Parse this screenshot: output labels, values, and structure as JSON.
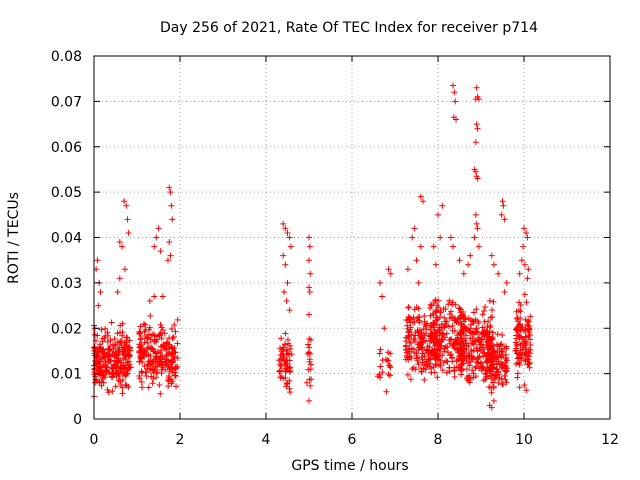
{
  "chart_data": {
    "type": "scatter",
    "title": "Day 256 of 2021, Rate Of TEC Index for receiver p714",
    "xlabel": "GPS time / hours",
    "ylabel": "ROTI / TECUs",
    "xlim": [
      0,
      12
    ],
    "ylim": [
      0,
      0.08
    ],
    "xticks": [
      0,
      2,
      4,
      6,
      8,
      10,
      12
    ],
    "xtick_labels": [
      "0",
      "2",
      "4",
      "6",
      "8",
      "10",
      "12"
    ],
    "yticks": [
      0,
      0.01,
      0.02,
      0.03,
      0.04,
      0.05,
      0.06,
      0.07,
      0.08
    ],
    "ytick_labels": [
      "0",
      "0.01",
      "0.02",
      "0.03",
      "0.04",
      "0.05",
      "0.06",
      "0.07",
      "0.08"
    ],
    "grid": true,
    "marker": "+",
    "color": "#ff0000",
    "series": [
      {
        "name": "ROTI",
        "clusters": [
          {
            "x0": 0.0,
            "x1": 0.85,
            "ymin": 0.004,
            "ymax": 0.022,
            "n": 260
          },
          {
            "x0": 1.05,
            "x1": 1.95,
            "ymin": 0.004,
            "ymax": 0.024,
            "n": 220
          },
          {
            "x0": 4.3,
            "x1": 4.6,
            "ymin": 0.003,
            "ymax": 0.022,
            "n": 60
          },
          {
            "x0": 4.95,
            "x1": 5.05,
            "ymin": 0.006,
            "ymax": 0.02,
            "n": 15
          },
          {
            "x0": 6.6,
            "x1": 6.9,
            "ymin": 0.006,
            "ymax": 0.018,
            "n": 18
          },
          {
            "x0": 7.25,
            "x1": 8.0,
            "ymin": 0.004,
            "ymax": 0.028,
            "n": 180
          },
          {
            "x0": 7.8,
            "x1": 8.6,
            "ymin": 0.006,
            "ymax": 0.03,
            "n": 200
          },
          {
            "x0": 8.5,
            "x1": 9.3,
            "ymin": 0.005,
            "ymax": 0.028,
            "n": 220
          },
          {
            "x0": 9.1,
            "x1": 9.6,
            "ymin": 0.003,
            "ymax": 0.022,
            "n": 120
          },
          {
            "x0": 9.8,
            "x1": 10.15,
            "ymin": 0.005,
            "ymax": 0.03,
            "n": 110
          }
        ],
        "points": [
          [
            0.05,
            0.033
          ],
          [
            0.08,
            0.035
          ],
          [
            0.12,
            0.03
          ],
          [
            0.15,
            0.028
          ],
          [
            0.1,
            0.025
          ],
          [
            0.6,
            0.039
          ],
          [
            0.65,
            0.038
          ],
          [
            0.7,
            0.048
          ],
          [
            0.75,
            0.047
          ],
          [
            0.78,
            0.044
          ],
          [
            0.8,
            0.041
          ],
          [
            0.55,
            0.028
          ],
          [
            0.6,
            0.031
          ],
          [
            0.72,
            0.033
          ],
          [
            1.4,
            0.038
          ],
          [
            1.45,
            0.04
          ],
          [
            1.5,
            0.042
          ],
          [
            1.55,
            0.037
          ],
          [
            1.75,
            0.039
          ],
          [
            1.75,
            0.051
          ],
          [
            1.78,
            0.05
          ],
          [
            1.8,
            0.047
          ],
          [
            1.82,
            0.044
          ],
          [
            1.72,
            0.035
          ],
          [
            1.78,
            0.036
          ],
          [
            1.3,
            0.026
          ],
          [
            1.4,
            0.027
          ],
          [
            1.6,
            0.027
          ],
          [
            4.4,
            0.043
          ],
          [
            4.45,
            0.042
          ],
          [
            4.5,
            0.041
          ],
          [
            4.55,
            0.04
          ],
          [
            4.58,
            0.038
          ],
          [
            4.4,
            0.036
          ],
          [
            4.45,
            0.034
          ],
          [
            4.5,
            0.03
          ],
          [
            4.42,
            0.028
          ],
          [
            4.48,
            0.026
          ],
          [
            4.55,
            0.024
          ],
          [
            5.0,
            0.04
          ],
          [
            5.02,
            0.038
          ],
          [
            5.0,
            0.035
          ],
          [
            5.03,
            0.032
          ],
          [
            5.0,
            0.029
          ],
          [
            5.02,
            0.028
          ],
          [
            5.0,
            0.023
          ],
          [
            5.0,
            0.004
          ],
          [
            4.95,
            0.008
          ],
          [
            6.65,
            0.03
          ],
          [
            6.7,
            0.027
          ],
          [
            6.85,
            0.033
          ],
          [
            6.9,
            0.032
          ],
          [
            6.75,
            0.02
          ],
          [
            6.8,
            0.006
          ],
          [
            7.4,
            0.04
          ],
          [
            7.45,
            0.042
          ],
          [
            7.5,
            0.035
          ],
          [
            7.3,
            0.033
          ],
          [
            7.6,
            0.038
          ],
          [
            7.55,
            0.03
          ],
          [
            7.6,
            0.049
          ],
          [
            7.65,
            0.048
          ],
          [
            8.1,
            0.047
          ],
          [
            8.05,
            0.04
          ],
          [
            8.0,
            0.045
          ],
          [
            7.9,
            0.038
          ],
          [
            7.95,
            0.034
          ],
          [
            8.35,
            0.0735
          ],
          [
            8.38,
            0.072
          ],
          [
            8.4,
            0.07
          ],
          [
            8.37,
            0.0665
          ],
          [
            8.42,
            0.066
          ],
          [
            8.3,
            0.04
          ],
          [
            8.35,
            0.038
          ],
          [
            8.9,
            0.073
          ],
          [
            8.92,
            0.071
          ],
          [
            8.95,
            0.0705
          ],
          [
            8.88,
            0.0705
          ],
          [
            8.9,
            0.065
          ],
          [
            8.92,
            0.064
          ],
          [
            8.88,
            0.061
          ],
          [
            8.85,
            0.055
          ],
          [
            8.88,
            0.0545
          ],
          [
            8.9,
            0.0535
          ],
          [
            8.92,
            0.053
          ],
          [
            8.88,
            0.045
          ],
          [
            8.9,
            0.043
          ],
          [
            8.92,
            0.042
          ],
          [
            8.85,
            0.04
          ],
          [
            8.95,
            0.038
          ],
          [
            8.7,
            0.034
          ],
          [
            8.75,
            0.036
          ],
          [
            8.6,
            0.032
          ],
          [
            8.5,
            0.035
          ],
          [
            9.5,
            0.048
          ],
          [
            9.52,
            0.047
          ],
          [
            9.48,
            0.045
          ],
          [
            9.55,
            0.044
          ],
          [
            9.3,
            0.034
          ],
          [
            9.25,
            0.036
          ],
          [
            9.4,
            0.032
          ],
          [
            9.6,
            0.03
          ],
          [
            9.55,
            0.028
          ],
          [
            10.0,
            0.042
          ],
          [
            10.05,
            0.041
          ],
          [
            10.08,
            0.04
          ],
          [
            9.98,
            0.038
          ],
          [
            9.95,
            0.035
          ],
          [
            10.02,
            0.034
          ],
          [
            10.1,
            0.033
          ],
          [
            9.9,
            0.032
          ],
          [
            10.08,
            0.031
          ],
          [
            9.2,
            0.003
          ],
          [
            9.25,
            0.0025
          ],
          [
            9.3,
            0.004
          ]
        ]
      }
    ]
  }
}
